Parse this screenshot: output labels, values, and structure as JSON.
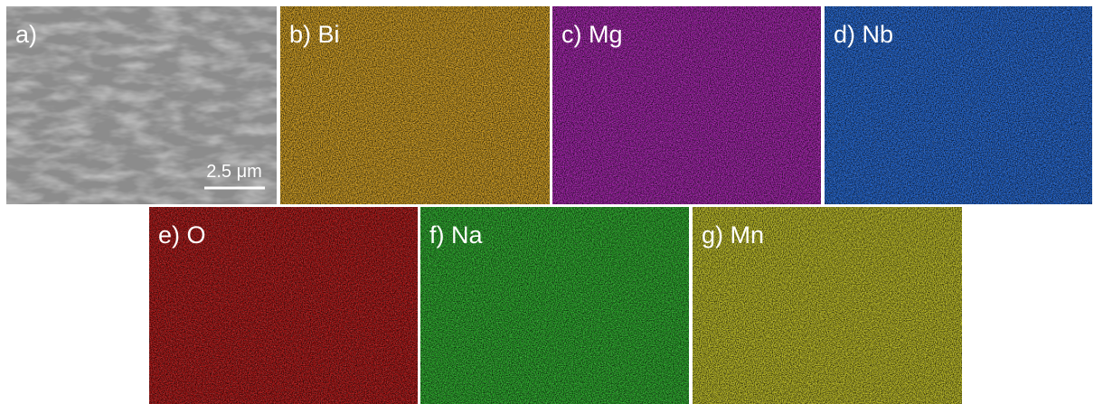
{
  "panels": [
    {
      "label": "a)"
    },
    {
      "label": "b) Bi"
    },
    {
      "label": "c) Mg"
    },
    {
      "label": "d) Nb"
    },
    {
      "label": "e) O"
    },
    {
      "label": "f) Na"
    },
    {
      "label": "g) Mn"
    }
  ],
  "scale_bar": "2.5 μm"
}
